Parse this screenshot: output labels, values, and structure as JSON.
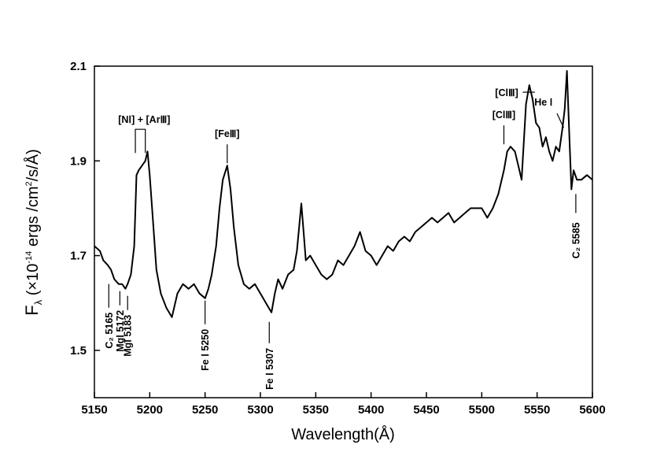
{
  "chart_data": {
    "type": "line",
    "title": "",
    "xlabel": "Wavelength(Å)",
    "ylabel": "Fλ (×10⁻¹⁴ ergs /cm²/s/Å)",
    "ylabel_parts": {
      "main": "F",
      "sub": "λ",
      "open": " (×10",
      "exp": "-14",
      "mid": " ergs /cm",
      "exp2": "2",
      "end": "/s/Å)"
    },
    "xlim": [
      5150,
      5600
    ],
    "ylim": [
      1.4,
      2.1
    ],
    "xticks": [
      5150,
      5200,
      5250,
      5300,
      5350,
      5400,
      5450,
      5500,
      5550,
      5600
    ],
    "xtick_labels": [
      "5150",
      "5200",
      "5250",
      "5300",
      "5350",
      "5400",
      "5450",
      "5500",
      "5550",
      "5600"
    ],
    "yticks": [
      1.5,
      1.7,
      1.9,
      2.1
    ],
    "ytick_labels": [
      "1.5",
      "1.7",
      "1.9",
      "2.1"
    ],
    "grid": false,
    "series": [
      {
        "x": [
          5150,
          5155,
          5158,
          5162,
          5165,
          5168,
          5172,
          5175,
          5178,
          5180,
          5183,
          5186,
          5188,
          5190,
          5193,
          5196,
          5198,
          5200,
          5203,
          5206,
          5210,
          5215,
          5220,
          5225,
          5230,
          5235,
          5240,
          5245,
          5250,
          5253,
          5256,
          5260,
          5263,
          5266,
          5270,
          5273,
          5276,
          5280,
          5285,
          5290,
          5295,
          5300,
          5305,
          5310,
          5313,
          5316,
          5320,
          5325,
          5330,
          5333,
          5335,
          5337,
          5339,
          5341,
          5345,
          5350,
          5355,
          5360,
          5365,
          5370,
          5375,
          5380,
          5385,
          5390,
          5395,
          5400,
          5405,
          5410,
          5415,
          5420,
          5425,
          5430,
          5435,
          5440,
          5445,
          5450,
          5455,
          5460,
          5465,
          5470,
          5475,
          5480,
          5485,
          5490,
          5495,
          5500,
          5505,
          5510,
          5515,
          5520,
          5523,
          5526,
          5530,
          5533,
          5536,
          5540,
          5543,
          5546,
          5549,
          5552,
          5555,
          5558,
          5561,
          5564,
          5567,
          5570,
          5573,
          5575,
          5577,
          5579,
          5581,
          5583,
          5586,
          5590,
          5595,
          5600
        ],
        "y": [
          1.72,
          1.71,
          1.69,
          1.68,
          1.67,
          1.65,
          1.64,
          1.64,
          1.63,
          1.64,
          1.66,
          1.72,
          1.87,
          1.88,
          1.89,
          1.9,
          1.92,
          1.87,
          1.77,
          1.67,
          1.62,
          1.59,
          1.57,
          1.62,
          1.64,
          1.63,
          1.64,
          1.62,
          1.61,
          1.63,
          1.66,
          1.72,
          1.8,
          1.86,
          1.89,
          1.84,
          1.76,
          1.68,
          1.64,
          1.63,
          1.64,
          1.62,
          1.6,
          1.58,
          1.62,
          1.65,
          1.63,
          1.66,
          1.67,
          1.71,
          1.76,
          1.81,
          1.75,
          1.69,
          1.7,
          1.68,
          1.66,
          1.65,
          1.66,
          1.69,
          1.68,
          1.7,
          1.72,
          1.75,
          1.71,
          1.7,
          1.68,
          1.7,
          1.72,
          1.71,
          1.73,
          1.74,
          1.73,
          1.75,
          1.76,
          1.77,
          1.78,
          1.77,
          1.78,
          1.79,
          1.77,
          1.78,
          1.79,
          1.8,
          1.8,
          1.8,
          1.78,
          1.8,
          1.83,
          1.88,
          1.92,
          1.93,
          1.92,
          1.89,
          1.86,
          2.02,
          2.06,
          2.03,
          1.98,
          1.97,
          1.93,
          1.95,
          1.92,
          1.9,
          1.93,
          1.92,
          1.97,
          2.01,
          2.09,
          1.96,
          1.84,
          1.88,
          1.86,
          1.86,
          1.87,
          1.86
        ]
      }
    ],
    "annotations": [
      {
        "id": "ni-ariii",
        "label": "[NⅠ] + [ArⅢ]",
        "orientation": "horizontal",
        "bracket_x": [
          5187,
          5196
        ],
        "bracket_y": 1.95,
        "text_y": 1.98,
        "text_x": 5195
      },
      {
        "id": "feiii",
        "label": "[FeⅢ]",
        "orientation": "horizontal",
        "x": 5270,
        "line_y": [
          1.895,
          1.935
        ],
        "text_y": 1.95
      },
      {
        "id": "cliii-1",
        "label": "[ClⅢ]",
        "orientation": "horizontal",
        "x": 5520,
        "line_y": [
          1.935,
          1.975
        ],
        "text_y": 1.99
      },
      {
        "id": "cliii-2",
        "label": "[ClⅢ]",
        "orientation": "horizontal",
        "leader_x": [
          5537,
          5548
        ],
        "leader_y": 2.045,
        "text_x": 5533,
        "text_y": 2.045
      },
      {
        "id": "hei",
        "label": "He Ⅰ",
        "orientation": "horizontal",
        "leader_x": [
          5568,
          5574
        ],
        "leader_y": [
          2.0,
          1.97
        ],
        "text_x": 5564,
        "text_y": 2.025
      },
      {
        "id": "c2-5165",
        "label": "C₂ 5165",
        "orientation": "vertical",
        "x": 5163,
        "line_y": [
          1.64,
          1.59
        ],
        "text_top_y": 1.58
      },
      {
        "id": "mgi-5172",
        "label": "MgⅠ 5172",
        "orientation": "vertical",
        "x": 5173,
        "line_y": [
          1.625,
          1.595
        ],
        "text_top_y": 1.585
      },
      {
        "id": "mgi-5183",
        "label": "MgⅠ 5183",
        "orientation": "vertical",
        "x": 5180,
        "line_y": [
          1.615,
          1.585
        ],
        "text_top_y": 1.575
      },
      {
        "id": "fei-5250",
        "label": "Fe Ⅰ 5250",
        "orientation": "vertical",
        "x": 5250,
        "line_y": [
          1.605,
          1.555
        ],
        "text_top_y": 1.545
      },
      {
        "id": "fei-5307",
        "label": "Fe Ⅰ 5307",
        "orientation": "vertical",
        "x": 5308,
        "line_y": [
          1.56,
          1.515
        ],
        "text_top_y": 1.505
      },
      {
        "id": "c2-5585",
        "label": "C₂ 5585",
        "orientation": "vertical",
        "x": 5585,
        "line_y": [
          1.83,
          1.79
        ],
        "text_top_y": 1.77
      }
    ]
  }
}
